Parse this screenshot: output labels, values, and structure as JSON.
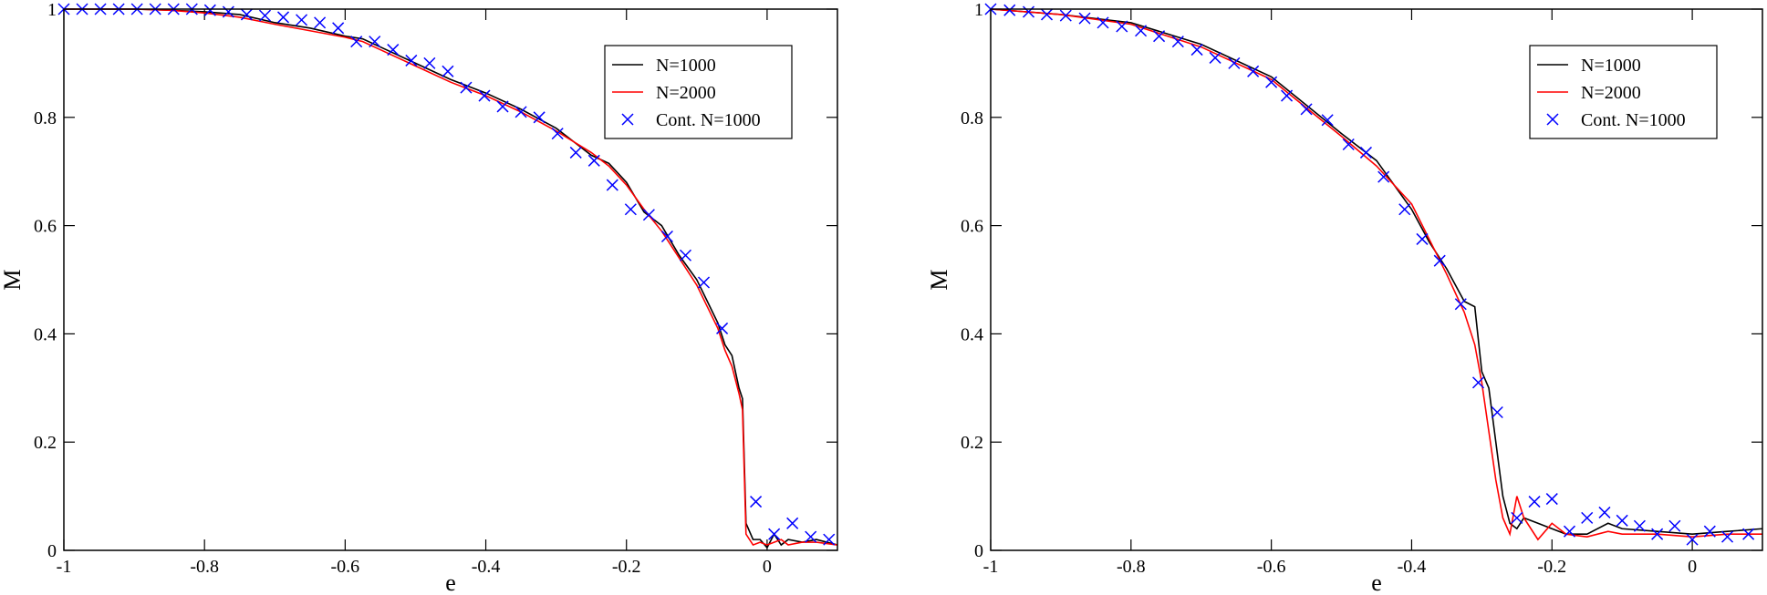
{
  "chart_data": [
    {
      "type": "line",
      "x_label": "e",
      "y_label": "M",
      "xlim": [
        -1,
        0.1
      ],
      "ylim": [
        0,
        1
      ],
      "xticks": [
        -1,
        -0.8,
        -0.6,
        -0.4,
        -0.2,
        0
      ],
      "yticks": [
        0,
        0.2,
        0.4,
        0.6,
        0.8,
        1
      ],
      "legend": "upper right",
      "series": [
        {
          "name": "N=1000",
          "color": "#000000",
          "marker": "none",
          "x": [
            -1,
            -0.95,
            -0.9,
            -0.85,
            -0.8,
            -0.75,
            -0.7,
            -0.65,
            -0.6,
            -0.575,
            -0.55,
            -0.5,
            -0.45,
            -0.4,
            -0.35,
            -0.3,
            -0.25,
            -0.225,
            -0.2,
            -0.175,
            -0.15,
            -0.125,
            -0.1,
            -0.085,
            -0.07,
            -0.06,
            -0.05,
            -0.04,
            -0.035,
            -0.03,
            -0.02,
            -0.01,
            0,
            0.01,
            0.02,
            0.03,
            0.05,
            0.07,
            0.1
          ],
          "values": [
            1,
            1,
            1,
            0.998,
            0.995,
            0.99,
            0.975,
            0.965,
            0.95,
            0.945,
            0.93,
            0.9,
            0.87,
            0.845,
            0.815,
            0.78,
            0.73,
            0.715,
            0.68,
            0.625,
            0.6,
            0.545,
            0.5,
            0.46,
            0.42,
            0.38,
            0.36,
            0.3,
            0.28,
            0.05,
            0.02,
            0.02,
            0.005,
            0.03,
            0.01,
            0.02,
            0.015,
            0.02,
            0.01
          ]
        },
        {
          "name": "N=2000",
          "color": "#ff0000",
          "marker": "none",
          "x": [
            -1,
            -0.95,
            -0.9,
            -0.85,
            -0.8,
            -0.75,
            -0.7,
            -0.65,
            -0.6,
            -0.575,
            -0.55,
            -0.5,
            -0.45,
            -0.4,
            -0.35,
            -0.3,
            -0.25,
            -0.225,
            -0.2,
            -0.175,
            -0.15,
            -0.125,
            -0.1,
            -0.085,
            -0.07,
            -0.06,
            -0.05,
            -0.04,
            -0.035,
            -0.03,
            -0.02,
            -0.01,
            0,
            0.01,
            0.02,
            0.03,
            0.05,
            0.07,
            0.1
          ],
          "values": [
            1,
            1,
            1,
            0.998,
            0.993,
            0.985,
            0.972,
            0.96,
            0.948,
            0.94,
            0.925,
            0.895,
            0.865,
            0.84,
            0.81,
            0.775,
            0.735,
            0.71,
            0.675,
            0.63,
            0.59,
            0.54,
            0.49,
            0.45,
            0.41,
            0.37,
            0.34,
            0.29,
            0.26,
            0.03,
            0.01,
            0.015,
            0.01,
            0.015,
            0.02,
            0.01,
            0.015,
            0.015,
            0.01
          ]
        },
        {
          "name": "Cont. N=1000",
          "color": "#0000ff",
          "marker": "x",
          "x": [
            -1,
            -0.974,
            -0.948,
            -0.922,
            -0.896,
            -0.87,
            -0.844,
            -0.818,
            -0.792,
            -0.766,
            -0.74,
            -0.714,
            -0.688,
            -0.662,
            -0.636,
            -0.61,
            -0.584,
            -0.558,
            -0.532,
            -0.506,
            -0.48,
            -0.454,
            -0.428,
            -0.402,
            -0.376,
            -0.35,
            -0.324,
            -0.298,
            -0.272,
            -0.246,
            -0.22,
            -0.194,
            -0.168,
            -0.142,
            -0.116,
            -0.09,
            -0.064,
            -0.016,
            0.01,
            0.036,
            0.062,
            0.088
          ],
          "values": [
            1,
            1,
            1,
            1,
            1,
            1,
            1,
            1,
            0.998,
            0.995,
            0.99,
            0.988,
            0.985,
            0.98,
            0.975,
            0.965,
            0.94,
            0.94,
            0.925,
            0.905,
            0.9,
            0.885,
            0.855,
            0.84,
            0.82,
            0.81,
            0.8,
            0.77,
            0.735,
            0.72,
            0.675,
            0.63,
            0.62,
            0.58,
            0.545,
            0.495,
            0.41,
            0.09,
            0.03,
            0.05,
            0.025,
            0.02
          ]
        }
      ]
    },
    {
      "type": "line",
      "x_label": "e",
      "y_label": "M",
      "xlim": [
        -1,
        0.1
      ],
      "ylim": [
        0,
        1
      ],
      "xticks": [
        -1,
        -0.8,
        -0.6,
        -0.4,
        -0.2,
        0
      ],
      "yticks": [
        0,
        0.2,
        0.4,
        0.6,
        0.8,
        1
      ],
      "legend": "upper right",
      "series": [
        {
          "name": "N=1000",
          "color": "#000000",
          "marker": "none",
          "x": [
            -1,
            -0.9,
            -0.8,
            -0.7,
            -0.6,
            -0.5,
            -0.45,
            -0.4,
            -0.375,
            -0.35,
            -0.325,
            -0.31,
            -0.3,
            -0.29,
            -0.28,
            -0.27,
            -0.26,
            -0.25,
            -0.24,
            -0.22,
            -0.2,
            -0.18,
            -0.15,
            -0.12,
            -0.1,
            -0.05,
            0,
            0.05,
            0.1
          ],
          "values": [
            1,
            0.99,
            0.975,
            0.935,
            0.875,
            0.77,
            0.72,
            0.63,
            0.57,
            0.52,
            0.46,
            0.45,
            0.33,
            0.3,
            0.2,
            0.1,
            0.05,
            0.04,
            0.06,
            0.05,
            0.04,
            0.03,
            0.03,
            0.05,
            0.04,
            0.035,
            0.03,
            0.035,
            0.04
          ]
        },
        {
          "name": "N=2000",
          "color": "#ff0000",
          "marker": "none",
          "x": [
            -1,
            -0.9,
            -0.8,
            -0.7,
            -0.6,
            -0.5,
            -0.45,
            -0.4,
            -0.375,
            -0.35,
            -0.325,
            -0.31,
            -0.3,
            -0.29,
            -0.28,
            -0.27,
            -0.26,
            -0.25,
            -0.24,
            -0.22,
            -0.2,
            -0.18,
            -0.15,
            -0.12,
            -0.1,
            -0.05,
            0,
            0.05,
            0.1
          ],
          "values": [
            1,
            0.99,
            0.972,
            0.93,
            0.87,
            0.765,
            0.71,
            0.64,
            0.575,
            0.51,
            0.44,
            0.38,
            0.31,
            0.22,
            0.13,
            0.06,
            0.03,
            0.1,
            0.06,
            0.02,
            0.05,
            0.03,
            0.025,
            0.035,
            0.03,
            0.03,
            0.025,
            0.03,
            0.03
          ]
        },
        {
          "name": "Cont. N=1000",
          "color": "#0000ff",
          "marker": "x",
          "x": [
            -1,
            -0.973,
            -0.946,
            -0.92,
            -0.893,
            -0.866,
            -0.84,
            -0.813,
            -0.786,
            -0.76,
            -0.733,
            -0.706,
            -0.68,
            -0.653,
            -0.626,
            -0.6,
            -0.578,
            -0.55,
            -0.52,
            -0.49,
            -0.465,
            -0.44,
            -0.41,
            -0.385,
            -0.36,
            -0.33,
            -0.305,
            -0.278,
            -0.25,
            -0.225,
            -0.2,
            -0.175,
            -0.15,
            -0.125,
            -0.1,
            -0.075,
            -0.05,
            -0.025,
            0,
            0.025,
            0.05,
            0.08
          ],
          "values": [
            1,
            0.998,
            0.995,
            0.99,
            0.988,
            0.983,
            0.975,
            0.968,
            0.96,
            0.95,
            0.94,
            0.925,
            0.91,
            0.9,
            0.885,
            0.865,
            0.84,
            0.815,
            0.795,
            0.75,
            0.735,
            0.69,
            0.63,
            0.575,
            0.535,
            0.455,
            0.31,
            0.255,
            0.06,
            0.09,
            0.095,
            0.035,
            0.06,
            0.07,
            0.055,
            0.045,
            0.03,
            0.045,
            0.02,
            0.035,
            0.025,
            0.03
          ]
        }
      ]
    }
  ]
}
